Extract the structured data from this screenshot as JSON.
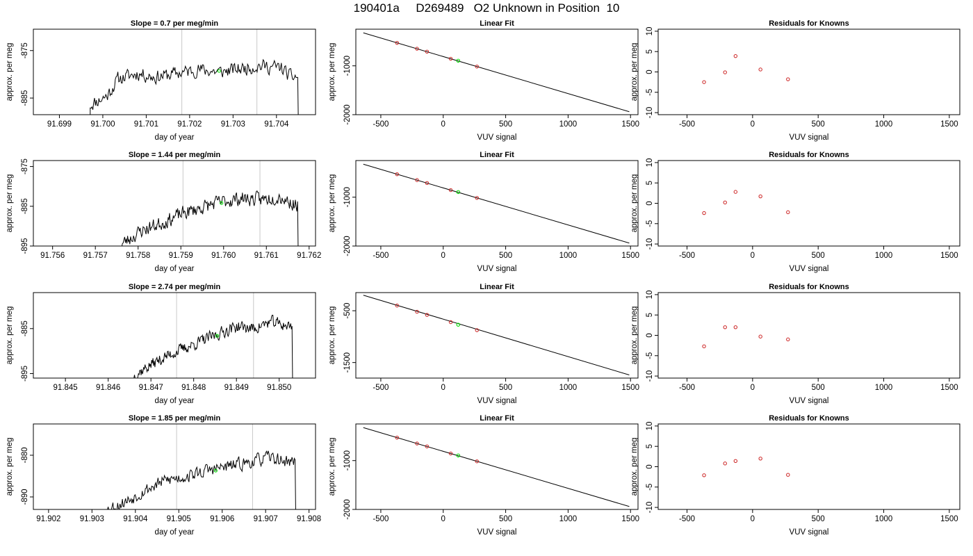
{
  "figure_title": "190401a     D269489   O2 Unknown in Position  10",
  "colors": {
    "series": "#000000",
    "unknown_marker": "#00dd00",
    "known_marker": "#cc2222",
    "vline": "#c8c8c8",
    "axis": "#000000"
  },
  "chart_data": [
    {
      "row": 1,
      "col": 1,
      "type": "line",
      "title": "Slope =  0.7  per meg/min",
      "xlabel": "day of year",
      "ylabel": "approx. per meg",
      "xlim": [
        91.6984,
        91.7049
      ],
      "ylim": [
        -888.5,
        -870.5
      ],
      "xticks": [
        91.699,
        91.7,
        91.701,
        91.702,
        91.703,
        91.704
      ],
      "xtick_labels": [
        "91.699",
        "91.700",
        "91.701",
        "91.702",
        "91.703",
        "91.704"
      ],
      "yticks": [
        -885,
        -875
      ],
      "ytick_labels": [
        "-885",
        "-875"
      ],
      "vlines": [
        91.70182,
        91.70355
      ],
      "x_start": 91.69971,
      "x_end": 91.70449,
      "series_path": [
        [
          91.69971,
          -886.4
        ],
        [
          91.7001,
          -884.5
        ],
        [
          91.70035,
          -881.0
        ],
        [
          91.7008,
          -879.8
        ],
        [
          91.7012,
          -880.6
        ],
        [
          91.7017,
          -879.8
        ],
        [
          91.7022,
          -879.0
        ],
        [
          91.7027,
          -879.5
        ],
        [
          91.7032,
          -878.8
        ],
        [
          91.7036,
          -878.2
        ],
        [
          91.7041,
          -878.6
        ],
        [
          91.70432,
          -880.5
        ]
      ],
      "noise_amp": 1.3,
      "seed": 11,
      "end_drop": -889.5,
      "marker": {
        "x": 91.70268,
        "y": -879.3
      }
    },
    {
      "row": 1,
      "col": 2,
      "type": "scatter_fit",
      "title": "Linear Fit",
      "xlabel": "VUV signal",
      "ylabel": "approx. per meg",
      "xlim": [
        -700,
        1560
      ],
      "ylim": [
        -2000,
        -250
      ],
      "xticks": [
        -500,
        0,
        500,
        1000,
        1500
      ],
      "xtick_labels": [
        "-500",
        "0",
        "500",
        "1000",
        "1500"
      ],
      "yticks": [
        -2000,
        -1000
      ],
      "ytick_labels": [
        "-2000",
        "-1000"
      ],
      "fit_line": [
        [
          -640,
          -325
        ],
        [
          1490,
          -1940
        ]
      ],
      "known_points": [
        [
          -370,
          -530
        ],
        [
          -210,
          -650
        ],
        [
          -130,
          -710
        ],
        [
          60,
          -855
        ],
        [
          270,
          -1015
        ]
      ],
      "unknown_point": [
        120,
        -895
      ]
    },
    {
      "row": 1,
      "col": 3,
      "type": "scatter",
      "title": "Residuals for Knowns",
      "xlabel": "VUV signal",
      "ylabel": "approx. per meg",
      "xlim": [
        -720,
        1580
      ],
      "ylim": [
        -10.5,
        10.5
      ],
      "xticks": [
        -500,
        0,
        500,
        1000,
        1500
      ],
      "xtick_labels": [
        "-500",
        "0",
        "500",
        "1000",
        "1500"
      ],
      "yticks": [
        -10,
        -5,
        0,
        5,
        10
      ],
      "ytick_labels": [
        "-10",
        "-5",
        "0",
        "5",
        "10"
      ],
      "points": [
        [
          -370,
          -2.5
        ],
        [
          -210,
          -0.1
        ],
        [
          -130,
          3.9
        ],
        [
          60,
          0.6
        ],
        [
          270,
          -1.8
        ]
      ]
    },
    {
      "row": 2,
      "col": 1,
      "type": "line",
      "title": "Slope =  1.44  per meg/min",
      "xlabel": "day of year",
      "ylabel": "approx. per meg",
      "xlim": [
        91.75555,
        91.76215
      ],
      "ylim": [
        -895.0,
        -873.5
      ],
      "xticks": [
        91.756,
        91.757,
        91.758,
        91.759,
        91.76,
        91.761,
        91.762
      ],
      "xtick_labels": [
        "91.756",
        "91.757",
        "91.758",
        "91.759",
        "91.760",
        "91.761",
        "91.762"
      ],
      "yticks": [
        -895,
        -885,
        -875
      ],
      "ytick_labels": [
        "-895",
        "-885",
        "-875"
      ],
      "vlines": [
        91.75905,
        91.76085
      ],
      "x_start": 91.7576,
      "x_end": 91.76173,
      "series_path": [
        [
          91.7576,
          -894.6
        ],
        [
          91.7581,
          -891.0
        ],
        [
          91.7586,
          -889.0
        ],
        [
          91.759,
          -887.0
        ],
        [
          91.7594,
          -885.6
        ],
        [
          91.7599,
          -884.0
        ],
        [
          91.7604,
          -883.0
        ],
        [
          91.7609,
          -883.3
        ],
        [
          91.7613,
          -882.5
        ],
        [
          91.76165,
          -884.5
        ]
      ],
      "noise_amp": 1.6,
      "seed": 23,
      "end_drop": -896.0,
      "marker": {
        "x": 91.75995,
        "y": -884.2
      }
    },
    {
      "row": 2,
      "col": 2,
      "type": "scatter_fit",
      "title": "Linear Fit",
      "xlabel": "VUV signal",
      "ylabel": "approx. per meg",
      "xlim": [
        -700,
        1560
      ],
      "ylim": [
        -2000,
        -250
      ],
      "xticks": [
        -500,
        0,
        500,
        1000,
        1500
      ],
      "xtick_labels": [
        "-500",
        "0",
        "500",
        "1000",
        "1500"
      ],
      "yticks": [
        -2000,
        -1000
      ],
      "ytick_labels": [
        "-2000",
        "-1000"
      ],
      "fit_line": [
        [
          -640,
          -325
        ],
        [
          1490,
          -1940
        ]
      ],
      "known_points": [
        [
          -370,
          -530
        ],
        [
          -210,
          -650
        ],
        [
          -130,
          -710
        ],
        [
          60,
          -855
        ],
        [
          270,
          -1015
        ]
      ],
      "unknown_point": [
        120,
        -895
      ]
    },
    {
      "row": 2,
      "col": 3,
      "type": "scatter",
      "title": "Residuals for Knowns",
      "xlabel": "VUV signal",
      "ylabel": "approx. per meg",
      "xlim": [
        -720,
        1580
      ],
      "ylim": [
        -10.5,
        10.5
      ],
      "xticks": [
        -500,
        0,
        500,
        1000,
        1500
      ],
      "xtick_labels": [
        "-500",
        "0",
        "500",
        "1000",
        "1500"
      ],
      "yticks": [
        -10,
        -5,
        0,
        5,
        10
      ],
      "ytick_labels": [
        "-10",
        "-5",
        "0",
        "5",
        "10"
      ],
      "points": [
        [
          -370,
          -2.4
        ],
        [
          -210,
          0.2
        ],
        [
          -130,
          2.8
        ],
        [
          60,
          1.7
        ],
        [
          270,
          -2.2
        ]
      ]
    },
    {
      "row": 3,
      "col": 1,
      "type": "line",
      "title": "Slope =  2.74  per meg/min",
      "xlabel": "day of year",
      "ylabel": "approx. per meg",
      "xlim": [
        91.84425,
        91.85085
      ],
      "ylim": [
        -896.0,
        -877.0
      ],
      "xticks": [
        91.845,
        91.846,
        91.847,
        91.848,
        91.849,
        91.85
      ],
      "xtick_labels": [
        "91.845",
        "91.846",
        "91.847",
        "91.848",
        "91.849",
        "91.850"
      ],
      "yticks": [
        -895,
        -885
      ],
      "ytick_labels": [
        "-895",
        "-885"
      ],
      "vlines": [
        91.8476,
        91.8494
      ],
      "x_start": 91.8466,
      "x_end": 91.8503,
      "series_path": [
        [
          91.8466,
          -895.5
        ],
        [
          91.847,
          -893.0
        ],
        [
          91.8475,
          -890.5
        ],
        [
          91.848,
          -888.5
        ],
        [
          91.8485,
          -886.5
        ],
        [
          91.849,
          -884.5
        ],
        [
          91.8494,
          -885.0
        ],
        [
          91.8498,
          -883.5
        ],
        [
          91.85025,
          -884.5
        ]
      ],
      "noise_amp": 1.2,
      "seed": 37,
      "end_drop": -897.0,
      "marker": {
        "x": 91.84855,
        "y": -886.6
      }
    },
    {
      "row": 3,
      "col": 2,
      "type": "scatter_fit",
      "title": "Linear Fit",
      "xlabel": "VUV signal",
      "ylabel": "approx. per meg",
      "xlim": [
        -700,
        1560
      ],
      "ylim": [
        -1800,
        -150
      ],
      "xticks": [
        -500,
        0,
        500,
        1000,
        1500
      ],
      "xtick_labels": [
        "-500",
        "0",
        "500",
        "1000",
        "1500"
      ],
      "yticks": [
        -1500,
        -500
      ],
      "ytick_labels": [
        "-1500",
        "-500"
      ],
      "fit_line": [
        [
          -640,
          -200
        ],
        [
          1490,
          -1740
        ]
      ],
      "known_points": [
        [
          -370,
          -400
        ],
        [
          -210,
          -520
        ],
        [
          -130,
          -580
        ],
        [
          60,
          -720
        ],
        [
          270,
          -875
        ]
      ],
      "unknown_point": [
        120,
        -770
      ]
    },
    {
      "row": 3,
      "col": 3,
      "type": "scatter",
      "title": "Residuals for Knowns",
      "xlabel": "VUV signal",
      "ylabel": "approx. per meg",
      "xlim": [
        -720,
        1580
      ],
      "ylim": [
        -10.5,
        10.5
      ],
      "xticks": [
        -500,
        0,
        500,
        1000,
        1500
      ],
      "xtick_labels": [
        "-500",
        "0",
        "500",
        "1000",
        "1500"
      ],
      "yticks": [
        -10,
        -5,
        0,
        5,
        10
      ],
      "ytick_labels": [
        "-10",
        "-5",
        "0",
        "5",
        "10"
      ],
      "points": [
        [
          -370,
          -2.7
        ],
        [
          -210,
          2.0
        ],
        [
          -130,
          2.0
        ],
        [
          60,
          -0.3
        ],
        [
          270,
          -1.0
        ]
      ]
    },
    {
      "row": 4,
      "col": 1,
      "type": "line",
      "title": "Slope =  1.85  per meg/min",
      "xlabel": "day of year",
      "ylabel": "approx. per meg",
      "xlim": [
        91.90165,
        91.90815
      ],
      "ylim": [
        -893.0,
        -872.5
      ],
      "xticks": [
        91.902,
        91.903,
        91.904,
        91.905,
        91.906,
        91.907,
        91.908
      ],
      "xtick_labels": [
        "91.902",
        "91.903",
        "91.904",
        "91.905",
        "91.906",
        "91.907",
        "91.908"
      ],
      "yticks": [
        -890,
        -880
      ],
      "ytick_labels": [
        "-890",
        "-880"
      ],
      "vlines": [
        91.90495,
        91.9067
      ],
      "x_start": 91.9033,
      "x_end": 91.90768,
      "series_path": [
        [
          91.9033,
          -893.2
        ],
        [
          91.9038,
          -891.0
        ],
        [
          91.9042,
          -888.5
        ],
        [
          91.9047,
          -886.0
        ],
        [
          91.9052,
          -885.0
        ],
        [
          91.9057,
          -883.5
        ],
        [
          91.9062,
          -882.6
        ],
        [
          91.9067,
          -881.5
        ],
        [
          91.9071,
          -880.5
        ],
        [
          91.90745,
          -881.5
        ]
      ],
      "noise_amp": 1.4,
      "seed": 53,
      "end_drop": -894.0,
      "marker": {
        "x": 91.90585,
        "y": -883.7
      }
    },
    {
      "row": 4,
      "col": 2,
      "type": "scatter_fit",
      "title": "Linear Fit",
      "xlabel": "VUV signal",
      "ylabel": "approx. per meg",
      "xlim": [
        -700,
        1560
      ],
      "ylim": [
        -2000,
        -250
      ],
      "xticks": [
        -500,
        0,
        500,
        1000,
        1500
      ],
      "xtick_labels": [
        "-500",
        "0",
        "500",
        "1000",
        "1500"
      ],
      "yticks": [
        -2000,
        -1000
      ],
      "ytick_labels": [
        "-2000",
        "-1000"
      ],
      "fit_line": [
        [
          -640,
          -325
        ],
        [
          1490,
          -1940
        ]
      ],
      "known_points": [
        [
          -370,
          -530
        ],
        [
          -210,
          -650
        ],
        [
          -130,
          -710
        ],
        [
          60,
          -855
        ],
        [
          270,
          -1015
        ]
      ],
      "unknown_point": [
        120,
        -895
      ]
    },
    {
      "row": 4,
      "col": 3,
      "type": "scatter",
      "title": "Residuals for Knowns",
      "xlabel": "VUV signal",
      "ylabel": "approx. per meg",
      "xlim": [
        -720,
        1580
      ],
      "ylim": [
        -10.5,
        10.5
      ],
      "xticks": [
        -500,
        0,
        500,
        1000,
        1500
      ],
      "xtick_labels": [
        "-500",
        "0",
        "500",
        "1000",
        "1500"
      ],
      "yticks": [
        -10,
        -5,
        0,
        5,
        10
      ],
      "ytick_labels": [
        "-10",
        "-5",
        "0",
        "5",
        "10"
      ],
      "points": [
        [
          -370,
          -2.1
        ],
        [
          -210,
          0.8
        ],
        [
          -130,
          1.4
        ],
        [
          60,
          2.0
        ],
        [
          270,
          -2.0
        ]
      ]
    }
  ]
}
